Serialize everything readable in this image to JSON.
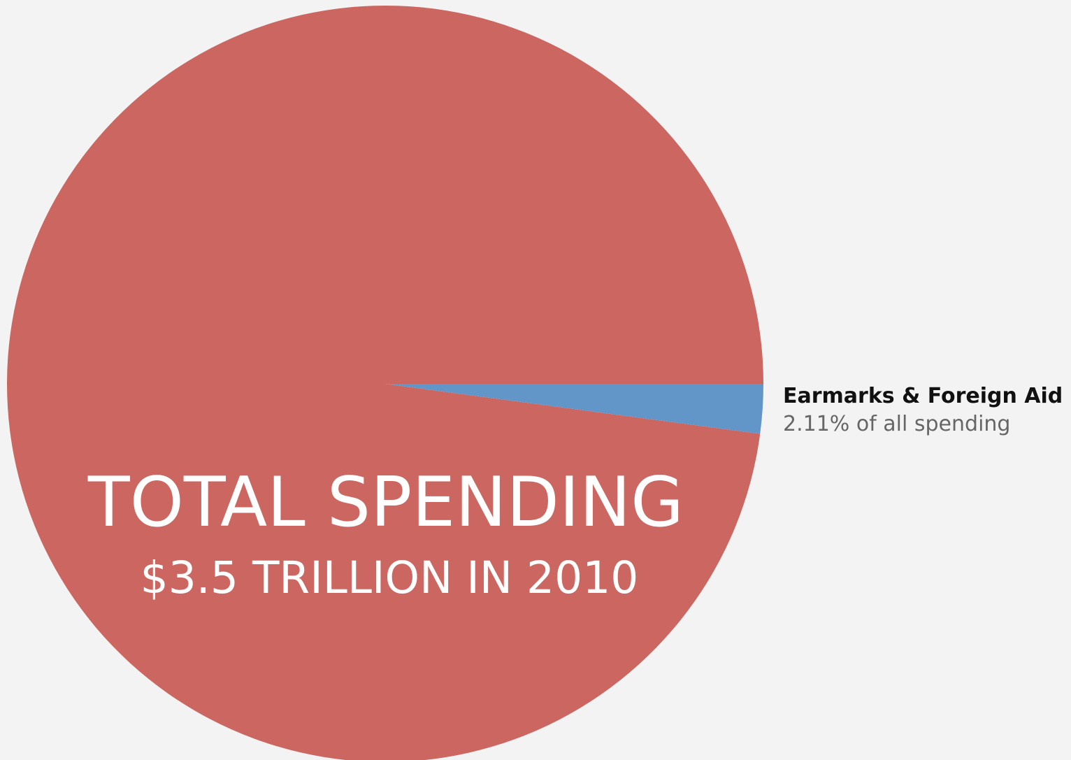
{
  "chart_data": {
    "type": "pie",
    "slices": [
      {
        "label": "TOTAL SPENDING",
        "sublabel": "$3.5 TRILLION IN 2010",
        "value": 97.89,
        "color": "#cc6660"
      },
      {
        "label": "Earmarks & Foreign Aid",
        "sublabel": "2.11% of all spending",
        "value": 2.11,
        "color": "#6396c8"
      }
    ],
    "start_angle_deg": 0,
    "direction": "clockwise",
    "background": "#f3f3f3"
  }
}
